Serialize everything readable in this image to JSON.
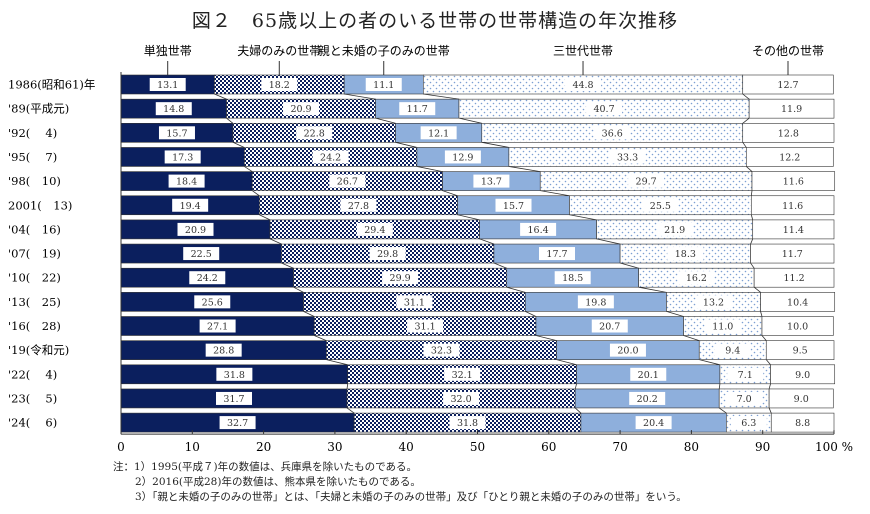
{
  "chart_data": {
    "type": "bar",
    "orientation": "horizontal",
    "stacked": true,
    "title": "図２　65歳以上の者のいる世帯の世帯構造の年次推移",
    "categories": [
      "1986(昭和61)年",
      "'89(平成元)",
      "'92(　 4)",
      "'95(　 7)",
      "'98(　10)",
      "2001(　13)",
      "'04(　16)",
      "'07(　19)",
      "'10(　22)",
      "'13(　25)",
      "'16(　28)",
      "'19(令和元)",
      "'22(　 4)",
      "'23(　 5)",
      "'24(　 6)"
    ],
    "series": [
      {
        "name": "単独世帯",
        "color": "#0b1f5e",
        "pattern": "solid",
        "values": [
          13.1,
          14.8,
          15.7,
          17.3,
          18.4,
          19.4,
          20.9,
          22.5,
          24.2,
          25.6,
          27.1,
          28.8,
          31.8,
          31.7,
          32.7
        ]
      },
      {
        "name": "夫婦のみの世帯",
        "color": "#0b1f5e",
        "pattern": "checker",
        "values": [
          18.2,
          20.9,
          22.8,
          24.2,
          26.7,
          27.8,
          29.4,
          29.8,
          29.9,
          31.1,
          31.1,
          32.3,
          32.1,
          32.0,
          31.8
        ]
      },
      {
        "name": "親と未婚の子のみの世帯",
        "color": "#8eafdc",
        "pattern": "solid",
        "values": [
          11.1,
          11.7,
          12.1,
          12.9,
          13.7,
          15.7,
          16.4,
          17.7,
          18.5,
          19.8,
          20.7,
          20.0,
          20.1,
          20.2,
          20.4
        ]
      },
      {
        "name": "三世代世帯",
        "color": "#8eafdc",
        "pattern": "dots",
        "values": [
          44.8,
          40.7,
          36.6,
          33.3,
          29.7,
          25.5,
          21.9,
          18.3,
          16.2,
          13.2,
          11.0,
          9.4,
          7.1,
          7.0,
          6.3
        ]
      },
      {
        "name": "その他の世帯",
        "color": "#ffffff",
        "pattern": "solid",
        "values": [
          12.7,
          11.9,
          12.8,
          12.2,
          11.6,
          11.6,
          11.4,
          11.7,
          11.2,
          10.4,
          10.0,
          9.5,
          9.0,
          9.0,
          8.8
        ]
      }
    ],
    "xlim": [
      0,
      100
    ],
    "xticks": [
      0,
      10,
      20,
      30,
      40,
      50,
      60,
      70,
      80,
      90,
      100
    ],
    "xunit": "%",
    "legend": "top",
    "grid": false
  },
  "notes": [
    "注：1）1995(平成７)年の数値は、兵庫県を除いたものである。",
    "2）2016(平成28)年の数値は、熊本県を除いたものである。",
    "3）「親と未婚の子のみの世帯」とは、「夫婦と未婚の子のみの世帯」及び「ひとり親と未婚の子のみの世帯」をいう。"
  ]
}
